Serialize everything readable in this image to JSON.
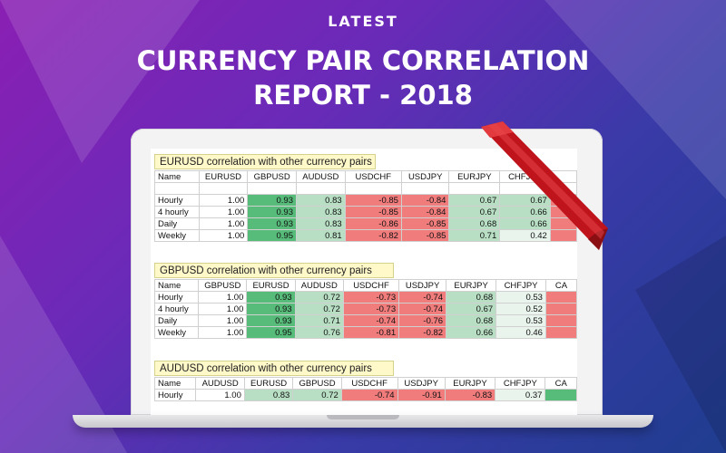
{
  "header": {
    "kicker": "LATEST",
    "title_line1": "CURRENCY PAIR CORRELATION",
    "title_line2": "REPORT - 2018"
  },
  "colors": {
    "strong_pos": "#57bb7a",
    "pos": "#b8dfc4",
    "light_pos": "#e8f4ec",
    "neg": "#f07c7c",
    "light_neg": "#f9d3d3",
    "ribbon": "#c0141c"
  },
  "tables": [
    {
      "caption": "EURUSD correlation with other currency pairs",
      "columns": [
        "Name",
        "EURUSD",
        "GBPUSD",
        "AUDUSD",
        "USDCHF",
        "USDJPY",
        "EURJPY",
        "CHFJPY",
        ""
      ],
      "rows": [
        {
          "label": "Hourly",
          "cells": [
            "1.00",
            "0.93",
            "0.83",
            "-0.85",
            "-0.84",
            "0.67",
            "0.67",
            ""
          ]
        },
        {
          "label": "4 hourly",
          "cells": [
            "1.00",
            "0.93",
            "0.83",
            "-0.85",
            "-0.84",
            "0.67",
            "0.66",
            ""
          ]
        },
        {
          "label": "Daily",
          "cells": [
            "1.00",
            "0.93",
            "0.83",
            "-0.86",
            "-0.85",
            "0.68",
            "0.66",
            ""
          ]
        },
        {
          "label": "Weekly",
          "cells": [
            "1.00",
            "0.95",
            "0.81",
            "-0.82",
            "-0.85",
            "0.71",
            "0.42",
            ""
          ]
        }
      ]
    },
    {
      "caption": "GBPUSD correlation with other currency pairs",
      "columns": [
        "Name",
        "GBPUSD",
        "EURUSD",
        "AUDUSD",
        "USDCHF",
        "USDJPY",
        "EURJPY",
        "CHFJPY",
        "CA"
      ],
      "rows": [
        {
          "label": "Hourly",
          "cells": [
            "1.00",
            "0.93",
            "0.72",
            "-0.73",
            "-0.74",
            "0.68",
            "0.53",
            ""
          ]
        },
        {
          "label": "4 hourly",
          "cells": [
            "1.00",
            "0.93",
            "0.72",
            "-0.73",
            "-0.74",
            "0.67",
            "0.52",
            ""
          ]
        },
        {
          "label": "Daily",
          "cells": [
            "1.00",
            "0.93",
            "0.71",
            "-0.74",
            "-0.76",
            "0.68",
            "0.53",
            ""
          ]
        },
        {
          "label": "Weekly",
          "cells": [
            "1.00",
            "0.95",
            "0.76",
            "-0.81",
            "-0.82",
            "0.66",
            "0.46",
            ""
          ]
        }
      ]
    },
    {
      "caption": "AUDUSD correlation with other currency pairs",
      "columns": [
        "Name",
        "AUDUSD",
        "EURUSD",
        "GBPUSD",
        "USDCHF",
        "USDJPY",
        "EURJPY",
        "CHFJPY",
        "CA"
      ],
      "rows": [
        {
          "label": "Hourly",
          "cells": [
            "1.00",
            "0.83",
            "0.72",
            "-0.74",
            "-0.91",
            "-0.83",
            "0.37",
            ""
          ]
        }
      ]
    }
  ]
}
